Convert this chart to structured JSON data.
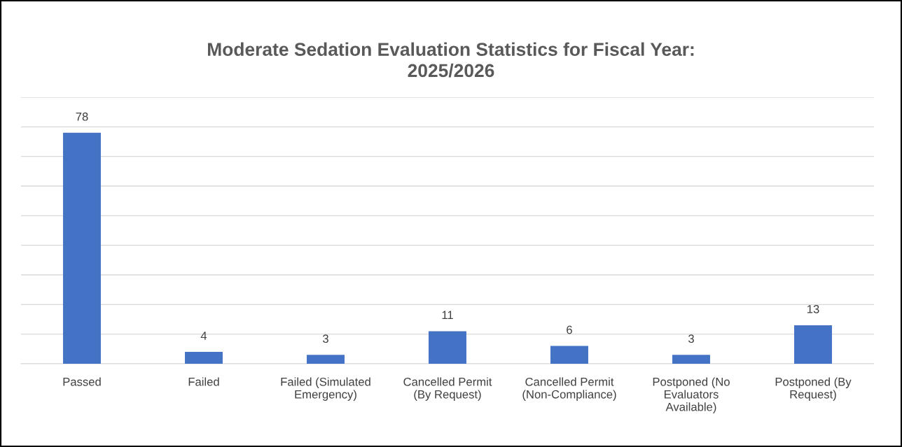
{
  "chart_data": {
    "type": "bar",
    "title": "Moderate Sedation Evaluation Statistics for Fiscal Year:\n2025/2026",
    "categories": [
      "Passed",
      "Failed",
      "Failed (Simulated\nEmergency)",
      "Cancelled Permit\n(By Request)",
      "Cancelled Permit\n(Non-Compliance)",
      "Postponed (No\nEvaluators\nAvailable)",
      "Postponed (By\nRequest)"
    ],
    "values": [
      78,
      4,
      3,
      11,
      6,
      3,
      13
    ],
    "color": "#4472c4",
    "data_labels": true,
    "ylim": [
      0,
      90
    ],
    "yticks": [
      {
        "value": 0,
        "label": null
      },
      {
        "value": 10,
        "label": null
      },
      {
        "value": 20,
        "label": null
      },
      {
        "value": 30,
        "label": null
      },
      {
        "value": 40,
        "label": null
      },
      {
        "value": 50,
        "label": null
      },
      {
        "value": 60,
        "label": null
      },
      {
        "value": 70,
        "label": null
      },
      {
        "value": 80,
        "label": null
      },
      {
        "value": 90,
        "label": null
      }
    ],
    "tick_labels": "x",
    "grid": "y"
  }
}
